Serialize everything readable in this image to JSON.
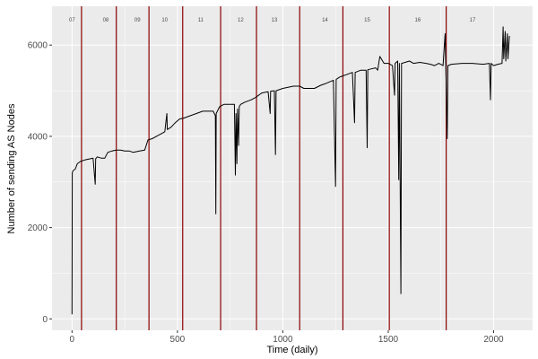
{
  "chart_data": {
    "type": "line",
    "xlabel": "Time (daily)",
    "ylabel": "Number of sending AS Nodes",
    "xlim": [
      -95,
      2185
    ],
    "ylim": [
      -250,
      6850
    ],
    "x_ticks": [
      0,
      500,
      1000,
      1500,
      2000
    ],
    "x_tick_labels": [
      "0",
      "500",
      "1000",
      "1500",
      "2000"
    ],
    "y_ticks": [
      0,
      2000,
      4000,
      6000
    ],
    "y_tick_labels": [
      "0",
      "2000",
      "4000",
      "6000"
    ],
    "grid": true,
    "background": "#ebebeb",
    "grid_color": "#ffffff",
    "line_color": "#000000",
    "vline_color": "#8b0000",
    "period_boundaries": [
      45,
      210,
      365,
      525,
      705,
      875,
      1080,
      1285,
      1505,
      1775
    ],
    "periods": [
      {
        "label": "07",
        "x": 0
      },
      {
        "label": "08",
        "x": 160
      },
      {
        "label": "09",
        "x": 310
      },
      {
        "label": "10",
        "x": 440
      },
      {
        "label": "11",
        "x": 610
      },
      {
        "label": "12",
        "x": 800
      },
      {
        "label": "13",
        "x": 960
      },
      {
        "label": "14",
        "x": 1200
      },
      {
        "label": "15",
        "x": 1400
      },
      {
        "label": "16",
        "x": 1640
      },
      {
        "label": "17",
        "x": 1900
      }
    ],
    "series": [
      {
        "values": [
          [
            0,
            100
          ],
          [
            1,
            3200
          ],
          [
            5,
            3250
          ],
          [
            15,
            3280
          ],
          [
            25,
            3400
          ],
          [
            40,
            3450
          ],
          [
            60,
            3480
          ],
          [
            80,
            3500
          ],
          [
            100,
            3520
          ],
          [
            110,
            2950
          ],
          [
            112,
            3510
          ],
          [
            120,
            3550
          ],
          [
            140,
            3520
          ],
          [
            155,
            3520
          ],
          [
            170,
            3650
          ],
          [
            190,
            3680
          ],
          [
            210,
            3700
          ],
          [
            230,
            3700
          ],
          [
            250,
            3680
          ],
          [
            270,
            3680
          ],
          [
            290,
            3650
          ],
          [
            320,
            3680
          ],
          [
            345,
            3700
          ],
          [
            360,
            3920
          ],
          [
            380,
            3950
          ],
          [
            400,
            4000
          ],
          [
            420,
            4050
          ],
          [
            440,
            4100
          ],
          [
            450,
            4500
          ],
          [
            452,
            4150
          ],
          [
            470,
            4200
          ],
          [
            490,
            4300
          ],
          [
            510,
            4380
          ],
          [
            530,
            4400
          ],
          [
            560,
            4450
          ],
          [
            590,
            4500
          ],
          [
            620,
            4550
          ],
          [
            650,
            4550
          ],
          [
            670,
            4550
          ],
          [
            680,
            4450
          ],
          [
            682,
            2300
          ],
          [
            684,
            4500
          ],
          [
            700,
            4650
          ],
          [
            720,
            4700
          ],
          [
            750,
            4700
          ],
          [
            770,
            4700
          ],
          [
            775,
            3150
          ],
          [
            778,
            4500
          ],
          [
            782,
            3400
          ],
          [
            785,
            4600
          ],
          [
            790,
            3800
          ],
          [
            793,
            4650
          ],
          [
            800,
            4700
          ],
          [
            820,
            4750
          ],
          [
            850,
            4800
          ],
          [
            870,
            4850
          ],
          [
            900,
            4950
          ],
          [
            930,
            4980
          ],
          [
            940,
            4500
          ],
          [
            942,
            4990
          ],
          [
            960,
            5000
          ],
          [
            965,
            3600
          ],
          [
            968,
            5000
          ],
          [
            1000,
            5050
          ],
          [
            1050,
            5100
          ],
          [
            1080,
            5100
          ],
          [
            1100,
            5050
          ],
          [
            1150,
            5050
          ],
          [
            1180,
            5120
          ],
          [
            1200,
            5150
          ],
          [
            1225,
            5200
          ],
          [
            1240,
            5230
          ],
          [
            1250,
            2900
          ],
          [
            1253,
            5250
          ],
          [
            1270,
            5300
          ],
          [
            1300,
            5350
          ],
          [
            1330,
            5400
          ],
          [
            1340,
            4300
          ],
          [
            1343,
            5400
          ],
          [
            1370,
            5450
          ],
          [
            1395,
            5450
          ],
          [
            1400,
            3750
          ],
          [
            1403,
            5460
          ],
          [
            1420,
            5480
          ],
          [
            1440,
            5500
          ],
          [
            1450,
            5450
          ],
          [
            1460,
            5750
          ],
          [
            1480,
            5600
          ],
          [
            1500,
            5600
          ],
          [
            1520,
            5550
          ],
          [
            1530,
            4900
          ],
          [
            1533,
            5600
          ],
          [
            1545,
            5650
          ],
          [
            1550,
            3050
          ],
          [
            1553,
            5600
          ],
          [
            1560,
            550
          ],
          [
            1563,
            5600
          ],
          [
            1580,
            5620
          ],
          [
            1600,
            5650
          ],
          [
            1620,
            5600
          ],
          [
            1650,
            5620
          ],
          [
            1680,
            5600
          ],
          [
            1700,
            5580
          ],
          [
            1720,
            5550
          ],
          [
            1740,
            5600
          ],
          [
            1760,
            5550
          ],
          [
            1770,
            6250
          ],
          [
            1773,
            5600
          ],
          [
            1780,
            3950
          ],
          [
            1783,
            5550
          ],
          [
            1800,
            5580
          ],
          [
            1850,
            5600
          ],
          [
            1900,
            5600
          ],
          [
            1950,
            5580
          ],
          [
            1980,
            5600
          ],
          [
            1985,
            4800
          ],
          [
            1988,
            5600
          ],
          [
            2000,
            5550
          ],
          [
            2020,
            5580
          ],
          [
            2040,
            5600
          ],
          [
            2045,
            6400
          ],
          [
            2048,
            5700
          ],
          [
            2055,
            6300
          ],
          [
            2058,
            5650
          ],
          [
            2065,
            6250
          ],
          [
            2068,
            5700
          ],
          [
            2075,
            6200
          ]
        ]
      }
    ]
  }
}
